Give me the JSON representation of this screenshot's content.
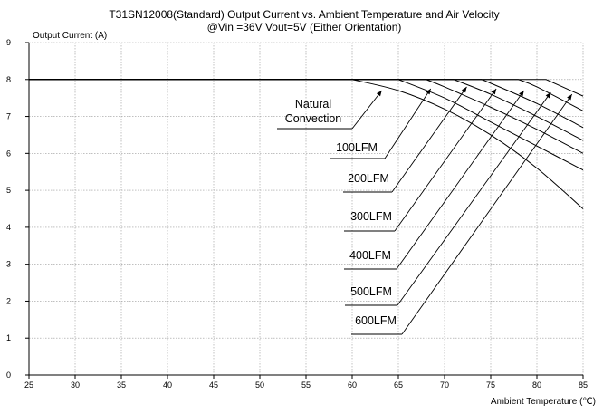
{
  "chart_data": {
    "type": "line",
    "title": "T31SN12008(Standard) Output Current vs. Ambient Temperature and Air Velocity",
    "subtitle": "@Vin =36V Vout=5V (Either Orientation)",
    "xlabel": "Ambient Temperature (℃)",
    "ylabel": "Output Current (A)",
    "xlim": [
      25,
      85
    ],
    "ylim": [
      0,
      9
    ],
    "xticks": [
      25,
      30,
      35,
      40,
      45,
      50,
      55,
      60,
      65,
      70,
      75,
      80,
      85
    ],
    "yticks": [
      0,
      1,
      2,
      3,
      4,
      5,
      6,
      7,
      8,
      9
    ],
    "grid": true,
    "legend": "none",
    "series": [
      {
        "name": "Natural Convection",
        "x": [
          25,
          60,
          65,
          70,
          75,
          80,
          85
        ],
        "y": [
          8,
          8,
          7.7,
          7.2,
          6.5,
          5.6,
          4.5
        ]
      },
      {
        "name": "100LFM",
        "x": [
          25,
          65,
          70,
          75,
          80,
          85
        ],
        "y": [
          8,
          8,
          7.5,
          6.85,
          6.2,
          5.55
        ]
      },
      {
        "name": "200LFM",
        "x": [
          25,
          68,
          70,
          75,
          80,
          85
        ],
        "y": [
          8,
          8,
          7.8,
          7.25,
          6.65,
          6.0
        ]
      },
      {
        "name": "300LFM",
        "x": [
          25,
          71,
          75,
          80,
          85
        ],
        "y": [
          8,
          8,
          7.6,
          7.0,
          6.35
        ]
      },
      {
        "name": "400LFM",
        "x": [
          25,
          74,
          75,
          80,
          85
        ],
        "y": [
          8,
          8,
          7.9,
          7.35,
          6.7
        ]
      },
      {
        "name": "500LFM",
        "x": [
          25,
          78,
          80,
          85
        ],
        "y": [
          8,
          8,
          7.8,
          7.15
        ]
      },
      {
        "name": "600LFM",
        "x": [
          25,
          81,
          85
        ],
        "y": [
          8,
          8,
          7.55
        ]
      }
    ],
    "annotations": [
      {
        "label_lines": [
          "Natural",
          "Convection"
        ],
        "target": [
          63.2,
          7.7
        ]
      },
      {
        "label_lines": [
          "100LFM"
        ],
        "target": [
          68.5,
          7.75
        ]
      },
      {
        "label_lines": [
          "200LFM"
        ],
        "target": [
          72.4,
          7.8
        ]
      },
      {
        "label_lines": [
          "300LFM"
        ],
        "target": [
          75.6,
          7.75
        ]
      },
      {
        "label_lines": [
          "400LFM"
        ],
        "target": [
          78.6,
          7.7
        ]
      },
      {
        "label_lines": [
          "500LFM"
        ],
        "target": [
          81.5,
          7.65
        ]
      },
      {
        "label_lines": [
          "600LFM"
        ],
        "target": [
          83.8,
          7.6
        ]
      }
    ]
  }
}
